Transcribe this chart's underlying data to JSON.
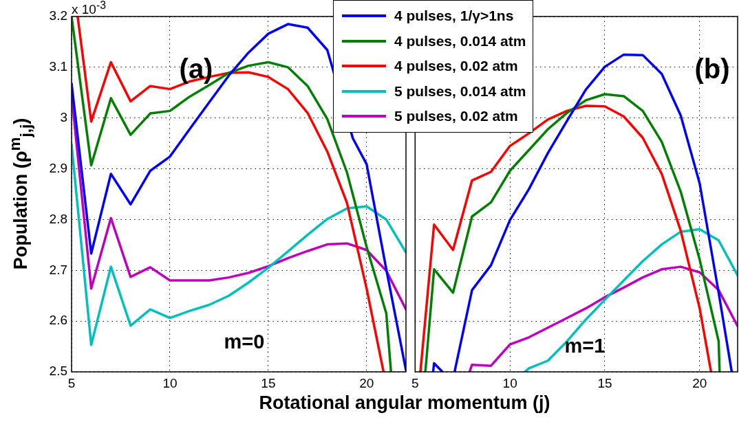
{
  "chart_data": [
    {
      "type": "line",
      "xlabel": "Rotational angular momentum (j)",
      "ylabel": "Population (ρ$^{m}$$_{j,j}$)",
      "annotations": [
        "x 10$^{-3}$",
        "(a)",
        "m=0"
      ],
      "xlim": [
        5,
        22
      ],
      "xticks": [
        5,
        10,
        15,
        20
      ],
      "ylim": [
        2.5,
        3.2
      ],
      "yticks": [
        2.5,
        2.6,
        2.7,
        2.8,
        2.9,
        3,
        3.1,
        3.2
      ],
      "grid": true,
      "legend": "top right",
      "marker": "none",
      "line_style": "solid",
      "series": [
        {
          "name": "4 pulses, 1/γ>1ns",
          "color": "#0000ff",
          "x": [
            5,
            6,
            7,
            8,
            9,
            10,
            11,
            12,
            13,
            14,
            15,
            16,
            17,
            18,
            19.3,
            20,
            21,
            22
          ],
          "values": [
            3.068,
            2.733,
            2.89,
            2.83,
            2.896,
            2.924,
            2.978,
            3.031,
            3.084,
            3.129,
            3.166,
            3.185,
            3.178,
            3.134,
            2.96,
            2.909,
            2.702,
            2.503
          ]
        },
        {
          "name": "4 pulses, 0.014 atm",
          "color": "#008000",
          "x": [
            5,
            6,
            7,
            8,
            9,
            10,
            11,
            12,
            13,
            14,
            15,
            16,
            17,
            18,
            19,
            20,
            21,
            21.24
          ],
          "values": [
            3.2,
            2.907,
            3.039,
            2.967,
            3.009,
            3.014,
            3.042,
            3.065,
            3.089,
            3.103,
            3.11,
            3.1,
            3.063,
            2.998,
            2.893,
            2.746,
            2.615,
            2.5
          ]
        },
        {
          "name": "4 pulses, 0.02 atm",
          "color": "#ff0000",
          "x": [
            5.31,
            6,
            7,
            8,
            9,
            10,
            11,
            12,
            13,
            14,
            15,
            16,
            17,
            18,
            19,
            20,
            20.86
          ],
          "values": [
            3.2,
            2.993,
            3.11,
            3.033,
            3.063,
            3.057,
            3.072,
            3.081,
            3.089,
            3.09,
            3.081,
            3.057,
            3.01,
            2.934,
            2.833,
            2.664,
            2.5
          ]
        },
        {
          "name": "5 pulses, 0.014 atm",
          "color": "#00bfbf",
          "x": [
            5,
            6,
            7,
            8,
            9,
            10,
            11,
            12,
            13,
            14,
            15,
            16,
            17,
            18,
            19,
            20,
            21,
            22
          ],
          "values": [
            2.948,
            2.553,
            2.707,
            2.591,
            2.623,
            2.606,
            2.62,
            2.632,
            2.65,
            2.676,
            2.705,
            2.737,
            2.77,
            2.801,
            2.822,
            2.826,
            2.8,
            2.735
          ]
        },
        {
          "name": "5 pulses, 0.02 atm",
          "color": "#bf00bf",
          "x": [
            5,
            6,
            7,
            8,
            9,
            10,
            11,
            12,
            13,
            14,
            15,
            16,
            17,
            18,
            19,
            20,
            21,
            22
          ],
          "values": [
            3.046,
            2.664,
            2.803,
            2.687,
            2.706,
            2.68,
            2.68,
            2.68,
            2.686,
            2.695,
            2.708,
            2.724,
            2.738,
            2.751,
            2.753,
            2.74,
            2.699,
            2.623
          ]
        }
      ]
    },
    {
      "type": "line",
      "annotations": [
        "(b)",
        "m=1"
      ],
      "xlim": [
        5,
        22
      ],
      "xticks": [
        5,
        10,
        15,
        20
      ],
      "ylim": [
        2.5,
        3.2
      ],
      "yticks": [
        2.5,
        2.6,
        2.7,
        2.8,
        2.9,
        3,
        3.1,
        3.2
      ],
      "grid": true,
      "tick_labels": "x",
      "marker": "none",
      "line_style": "solid",
      "series": [
        {
          "color": "#0000ff",
          "x": [
            5.95,
            6,
            6.44,
            6.8,
            7.08,
            8,
            9,
            10,
            11,
            12,
            13,
            14,
            15,
            16,
            17,
            18,
            19,
            20,
            21,
            21.69
          ],
          "values": [
            2.5,
            2.517,
            2.5,
            null,
            2.5,
            2.661,
            2.71,
            2.799,
            2.86,
            2.931,
            2.994,
            3.056,
            3.101,
            3.125,
            3.124,
            3.087,
            3.005,
            2.871,
            2.656,
            2.5
          ]
        },
        {
          "color": "#008000",
          "x": [
            5.54,
            6,
            7,
            8,
            9,
            10,
            11,
            12,
            13,
            14,
            15,
            16,
            17,
            18,
            19,
            20,
            21,
            21.05
          ],
          "values": [
            2.5,
            2.702,
            2.656,
            2.806,
            2.834,
            2.896,
            2.937,
            2.978,
            3.01,
            3.035,
            3.047,
            3.043,
            3.014,
            2.953,
            2.855,
            2.721,
            2.56,
            2.5
          ]
        },
        {
          "color": "#ff0000",
          "x": [
            5.28,
            6,
            7,
            8,
            9,
            10,
            11,
            12,
            13,
            14,
            15,
            16,
            17,
            18,
            19,
            20,
            20.6
          ],
          "values": [
            2.5,
            2.79,
            2.74,
            2.877,
            2.894,
            2.945,
            2.97,
            2.997,
            3.014,
            3.024,
            3.023,
            3.003,
            2.961,
            2.89,
            2.778,
            2.625,
            2.5
          ]
        },
        {
          "color": "#00bfbf",
          "x": [
            10.79,
            11,
            12,
            13,
            14,
            15,
            16,
            17,
            18,
            19,
            20,
            21,
            22
          ],
          "values": [
            2.5,
            2.507,
            2.522,
            2.56,
            2.603,
            2.642,
            2.68,
            2.718,
            2.751,
            2.776,
            2.781,
            2.759,
            2.69
          ]
        },
        {
          "color": "#bf00bf",
          "x": [
            7.87,
            8,
            9,
            10,
            11,
            12,
            13,
            14,
            15,
            16,
            17,
            18,
            19,
            20,
            21,
            22
          ],
          "values": [
            2.5,
            2.514,
            2.512,
            2.554,
            2.568,
            2.587,
            2.606,
            2.625,
            2.647,
            2.666,
            2.686,
            2.702,
            2.707,
            2.696,
            2.661,
            2.59
          ]
        }
      ]
    }
  ]
}
